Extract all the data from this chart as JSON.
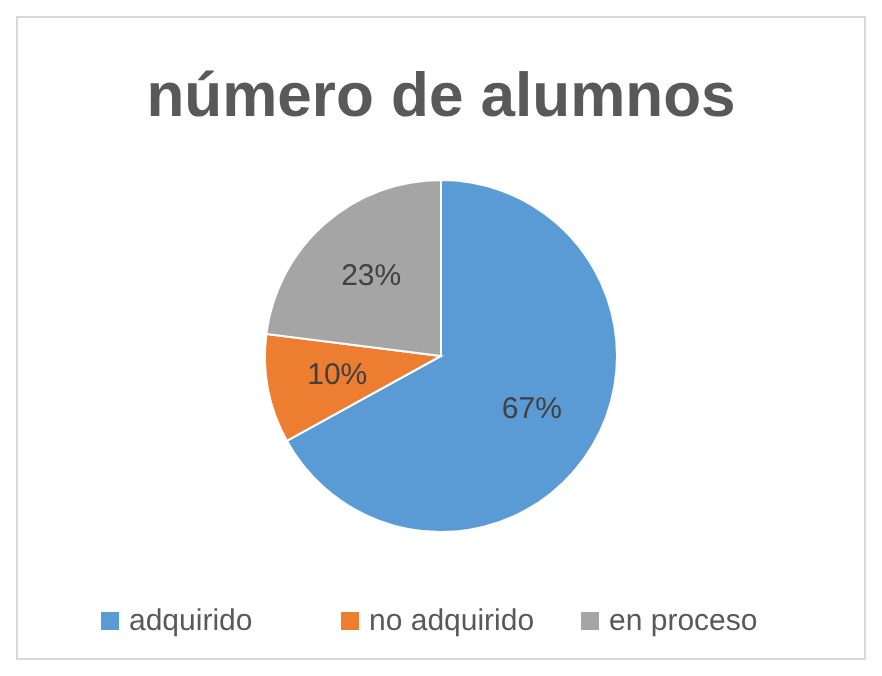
{
  "chart_data": {
    "type": "pie",
    "title": "número de alumnos",
    "categories": [
      "adquirido",
      "no adquirido",
      "en proceso"
    ],
    "values": [
      67,
      10,
      23
    ],
    "colors": [
      "#5b9bd5",
      "#ed7d31",
      "#a5a5a5"
    ],
    "value_labels": [
      "67%",
      "10%",
      "23%"
    ],
    "legend": "bottom"
  }
}
